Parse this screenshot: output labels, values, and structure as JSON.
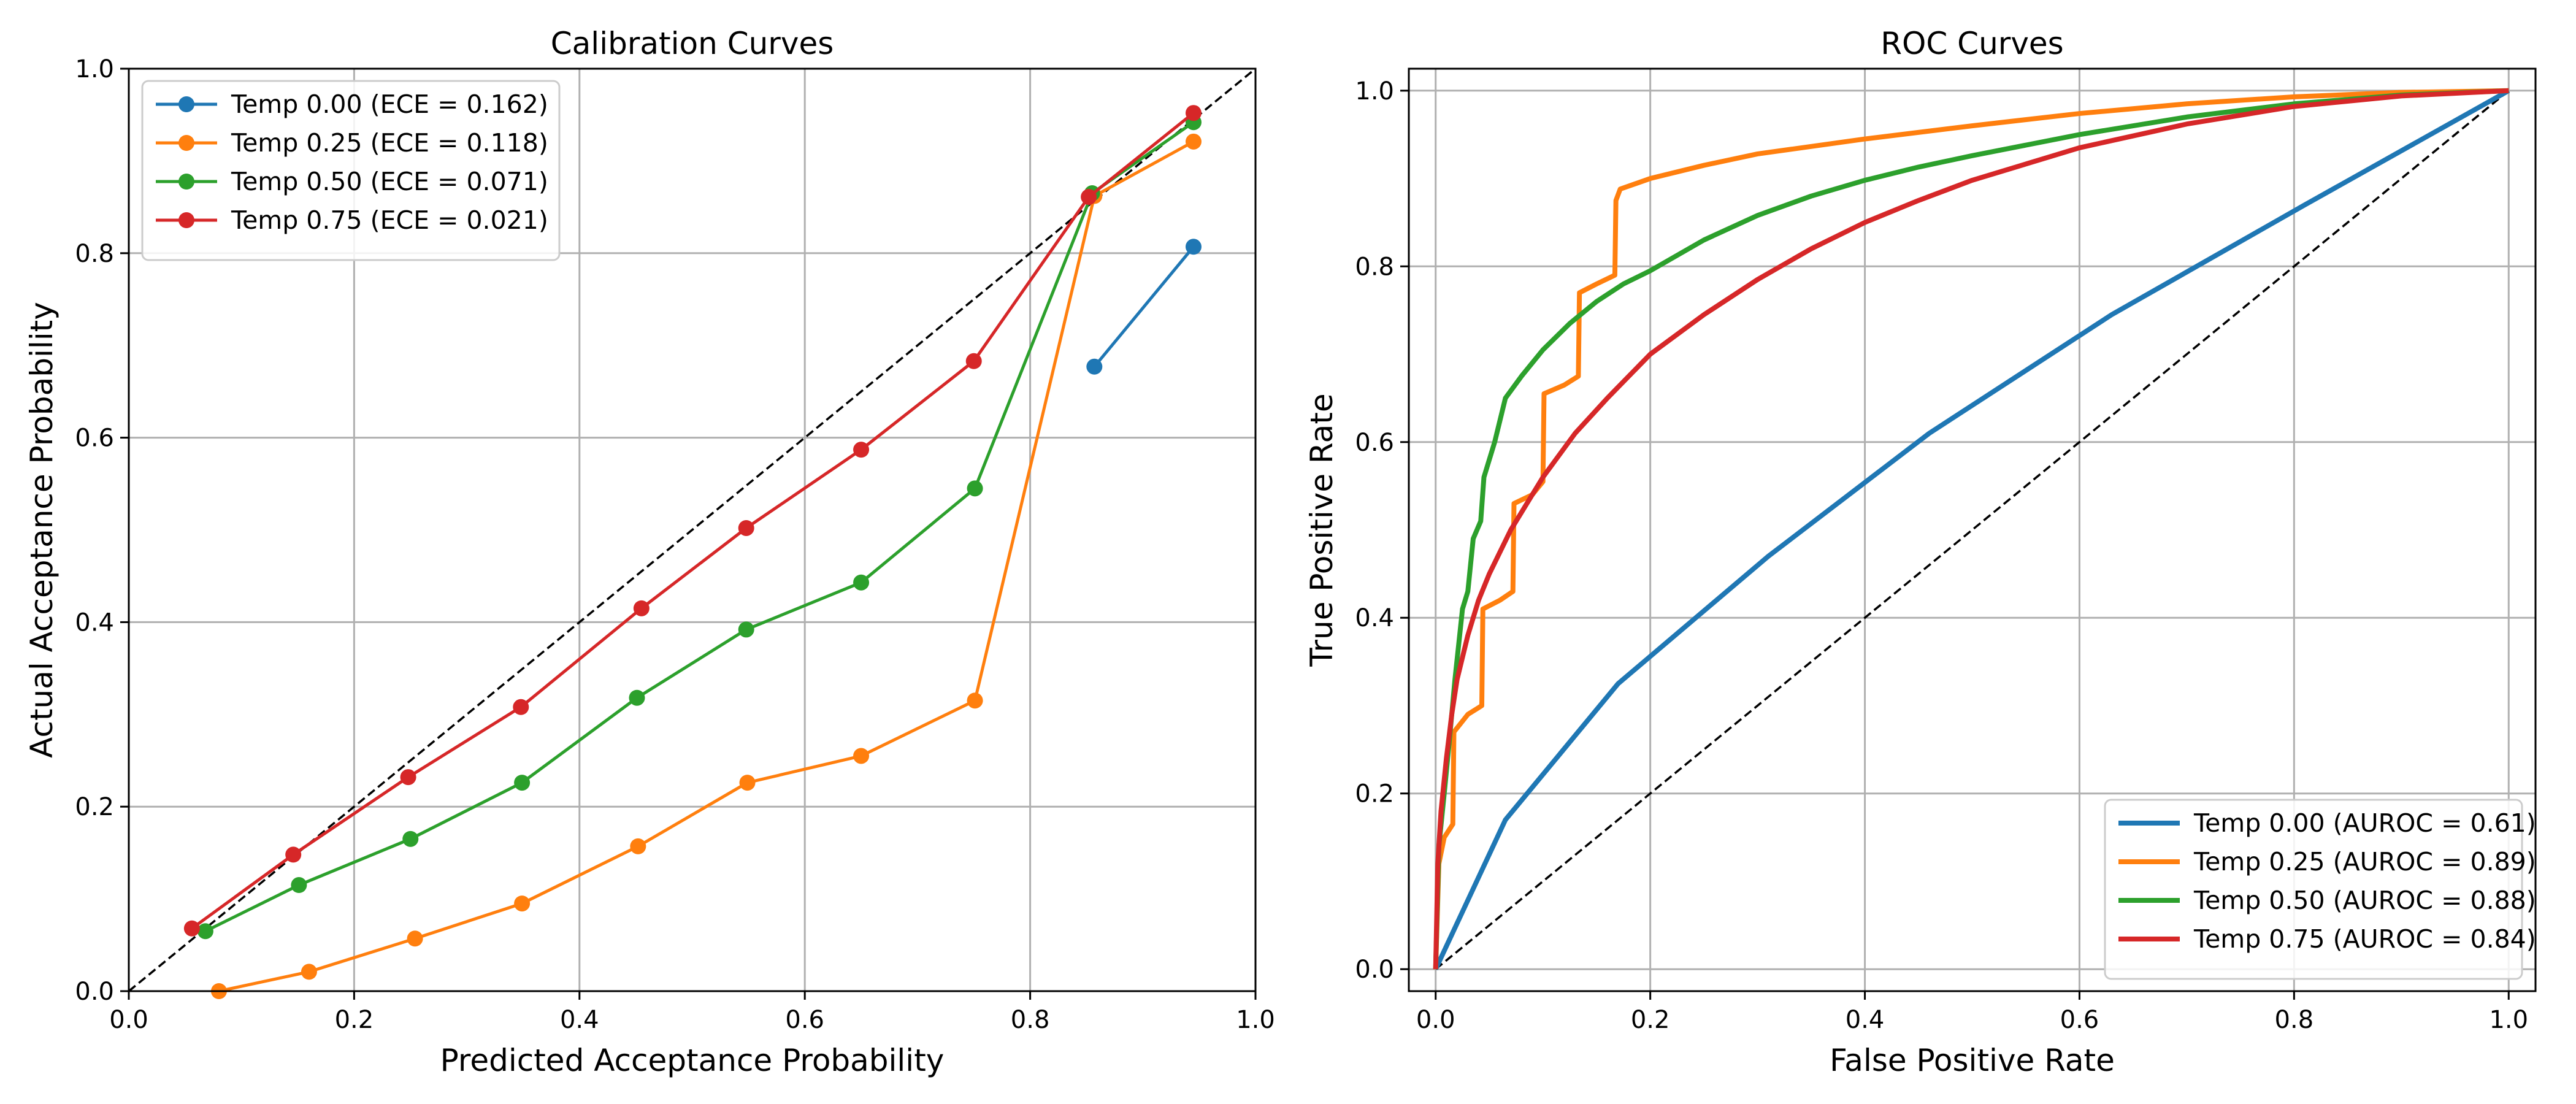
{
  "colors": {
    "temp_0_00": "#1f77b4",
    "temp_0_25": "#ff7f0e",
    "temp_0_50": "#2ca02c",
    "temp_0_75": "#d62728",
    "diagonal": "#000000",
    "grid": "#b0b0b0"
  },
  "chart_data": [
    {
      "type": "line",
      "title": "Calibration Curves",
      "xlabel": "Predicted Acceptance Probability",
      "ylabel": "Actual Acceptance Probability",
      "xlim": [
        0,
        1
      ],
      "ylim": [
        0,
        1
      ],
      "xticks": [
        "0.0",
        "0.2",
        "0.4",
        "0.6",
        "0.8",
        "1.0"
      ],
      "yticks": [
        "0.0",
        "0.2",
        "0.4",
        "0.6",
        "0.8",
        "1.0"
      ],
      "grid": true,
      "markers": true,
      "legend_position": "top-left",
      "reference_line": "diagonal dashed",
      "series": [
        {
          "name": "Temp 0.00 (ECE = 0.162)",
          "color_key": "temp_0_00",
          "x": [
            0.857,
            0.945
          ],
          "y": [
            0.677,
            0.807
          ]
        },
        {
          "name": "Temp 0.25 (ECE = 0.118)",
          "color_key": "temp_0_25",
          "x": [
            0.08,
            0.16,
            0.254,
            0.349,
            0.452,
            0.549,
            0.65,
            0.751,
            0.857,
            0.945
          ],
          "y": [
            0.0,
            0.021,
            0.057,
            0.095,
            0.157,
            0.226,
            0.255,
            0.315,
            0.862,
            0.921
          ]
        },
        {
          "name": "Temp 0.50 (ECE = 0.071)",
          "color_key": "temp_0_50",
          "x": [
            0.068,
            0.151,
            0.25,
            0.349,
            0.451,
            0.548,
            0.65,
            0.751,
            0.855,
            0.945
          ],
          "y": [
            0.065,
            0.115,
            0.165,
            0.226,
            0.318,
            0.392,
            0.443,
            0.545,
            0.865,
            0.942
          ]
        },
        {
          "name": "Temp 0.75 (ECE = 0.021)",
          "color_key": "temp_0_75",
          "x": [
            0.056,
            0.146,
            0.248,
            0.348,
            0.455,
            0.548,
            0.65,
            0.75,
            0.852,
            0.945
          ],
          "y": [
            0.068,
            0.148,
            0.232,
            0.308,
            0.415,
            0.502,
            0.587,
            0.683,
            0.861,
            0.952
          ]
        }
      ]
    },
    {
      "type": "line",
      "title": "ROC Curves",
      "xlabel": "False Positive Rate",
      "ylabel": "True Positive Rate",
      "xlim": [
        0,
        1
      ],
      "ylim": [
        0,
        1
      ],
      "xticks": [
        "0.0",
        "0.2",
        "0.4",
        "0.6",
        "0.8",
        "1.0"
      ],
      "yticks": [
        "0.0",
        "0.2",
        "0.4",
        "0.6",
        "0.8",
        "1.0"
      ],
      "grid": true,
      "markers": false,
      "legend_position": "bottom-right",
      "reference_line": "diagonal dashed",
      "series": [
        {
          "name": "Temp 0.00 (AUROC = 0.61)",
          "color_key": "temp_0_00",
          "x": [
            0,
            0.065,
            0.17,
            0.31,
            0.46,
            0.63,
            0.81,
            1.0
          ],
          "y": [
            0,
            0.17,
            0.325,
            0.47,
            0.61,
            0.745,
            0.87,
            1.0
          ]
        },
        {
          "name": "Temp 0.25 (AUROC = 0.89)",
          "color_key": "temp_0_25",
          "x": [
            0,
            0.003,
            0.008,
            0.016,
            0.017,
            0.03,
            0.043,
            0.044,
            0.06,
            0.072,
            0.073,
            0.09,
            0.1,
            0.101,
            0.12,
            0.133,
            0.134,
            0.15,
            0.167,
            0.168,
            0.172,
            0.2,
            0.25,
            0.3,
            0.4,
            0.5,
            0.6,
            0.7,
            0.8,
            0.9,
            1.0
          ],
          "y": [
            0,
            0.12,
            0.15,
            0.165,
            0.27,
            0.29,
            0.3,
            0.41,
            0.42,
            0.43,
            0.53,
            0.54,
            0.555,
            0.655,
            0.665,
            0.675,
            0.77,
            0.78,
            0.79,
            0.875,
            0.888,
            0.9,
            0.915,
            0.928,
            0.945,
            0.96,
            0.974,
            0.985,
            0.993,
            0.998,
            1.0
          ]
        },
        {
          "name": "Temp 0.50 (AUROC = 0.88)",
          "color_key": "temp_0_50",
          "x": [
            0,
            0.003,
            0.008,
            0.012,
            0.018,
            0.025,
            0.03,
            0.035,
            0.042,
            0.045,
            0.055,
            0.065,
            0.08,
            0.1,
            0.125,
            0.15,
            0.175,
            0.2,
            0.25,
            0.3,
            0.35,
            0.4,
            0.45,
            0.5,
            0.6,
            0.7,
            0.8,
            0.9,
            1.0
          ],
          "y": [
            0,
            0.14,
            0.2,
            0.25,
            0.33,
            0.41,
            0.43,
            0.49,
            0.51,
            0.56,
            0.6,
            0.65,
            0.675,
            0.705,
            0.735,
            0.76,
            0.78,
            0.795,
            0.83,
            0.858,
            0.88,
            0.898,
            0.913,
            0.926,
            0.95,
            0.97,
            0.985,
            0.995,
            1.0
          ]
        },
        {
          "name": "Temp 0.75 (AUROC = 0.84)",
          "color_key": "temp_0_75",
          "x": [
            0,
            0.002,
            0.005,
            0.01,
            0.015,
            0.02,
            0.03,
            0.04,
            0.05,
            0.07,
            0.1,
            0.13,
            0.16,
            0.2,
            0.25,
            0.3,
            0.35,
            0.4,
            0.45,
            0.5,
            0.6,
            0.7,
            0.8,
            0.9,
            1.0
          ],
          "y": [
            0,
            0.12,
            0.18,
            0.24,
            0.29,
            0.33,
            0.38,
            0.42,
            0.45,
            0.5,
            0.56,
            0.61,
            0.65,
            0.7,
            0.745,
            0.785,
            0.82,
            0.85,
            0.875,
            0.898,
            0.935,
            0.962,
            0.982,
            0.994,
            1.0
          ]
        }
      ]
    }
  ]
}
